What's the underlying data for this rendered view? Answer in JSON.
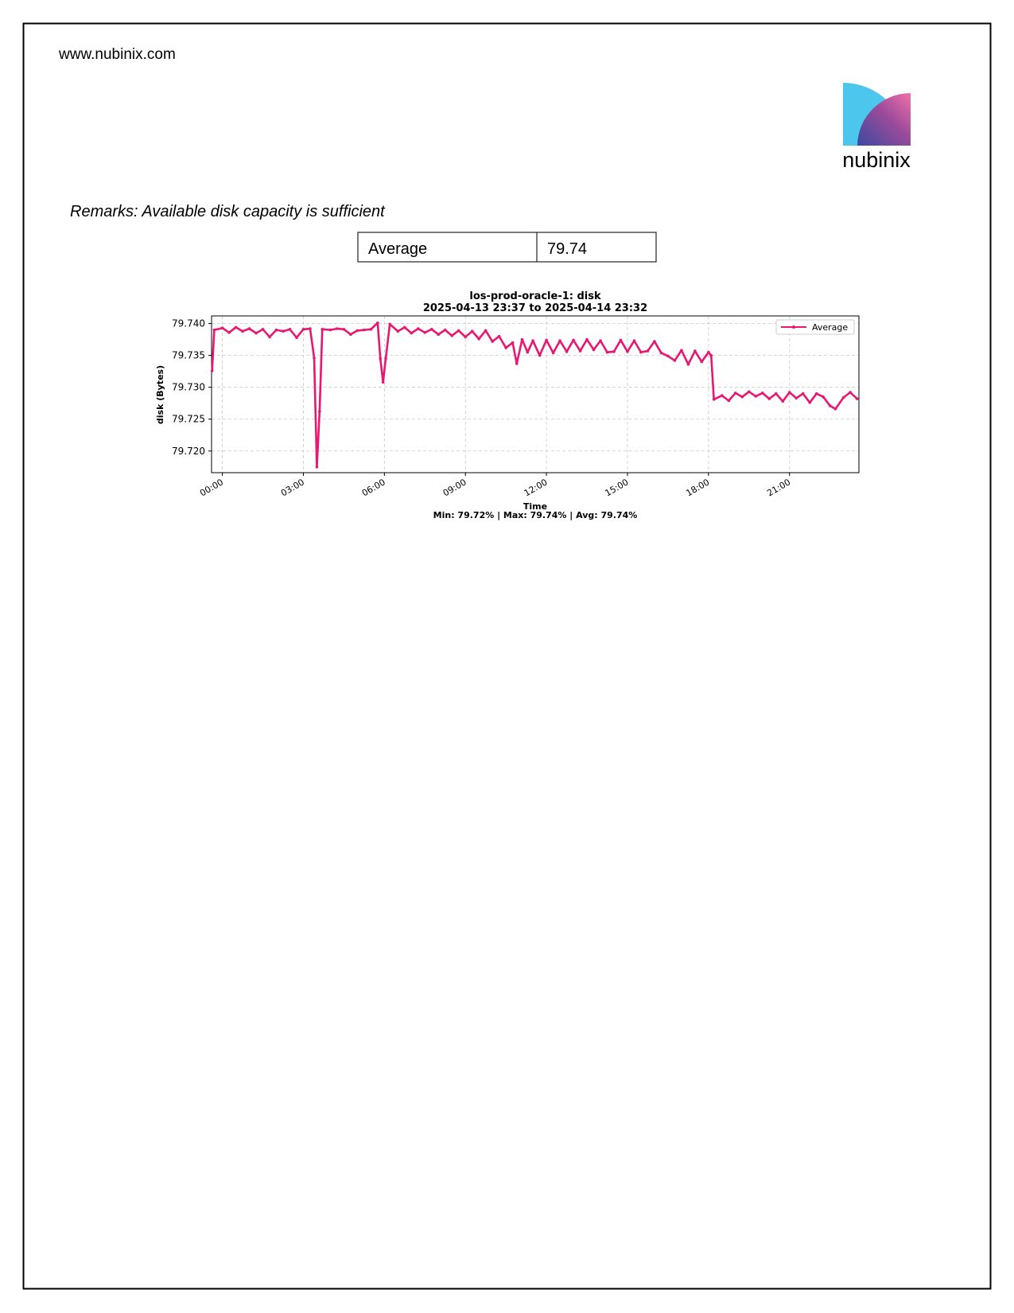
{
  "header": {
    "url": "www.nubinix.com",
    "logo_text": "nubinix"
  },
  "remarks": "Remarks: Available disk capacity is sufficient",
  "table": {
    "rows": [
      [
        "Average",
        "79.74"
      ]
    ]
  },
  "chart_data": {
    "type": "line",
    "title": "los-prod-oracle-1: disk",
    "subtitle": "2025-04-13 23:37 to 2025-04-14 23:32",
    "xlabel": "Time",
    "ylabel": "disk (Bytes)",
    "footer": "Min: 79.72% | Max: 79.74% | Avg: 79.74%",
    "legend": "upper right",
    "grid": true,
    "xlim": [
      -0.4,
      23.57
    ],
    "ylim": [
      79.7166,
      79.7412
    ],
    "xticks": [
      {
        "value": 0,
        "label": "00:00"
      },
      {
        "value": 3,
        "label": "03:00"
      },
      {
        "value": 6,
        "label": "06:00"
      },
      {
        "value": 9,
        "label": "09:00"
      },
      {
        "value": 12,
        "label": "12:00"
      },
      {
        "value": 15,
        "label": "15:00"
      },
      {
        "value": 18,
        "label": "18:00"
      },
      {
        "value": 21,
        "label": "21:00"
      }
    ],
    "yticks": [
      {
        "value": 79.72,
        "label": "79.720"
      },
      {
        "value": 79.725,
        "label": "79.725"
      },
      {
        "value": 79.73,
        "label": "79.730"
      },
      {
        "value": 79.735,
        "label": "79.735"
      },
      {
        "value": 79.74,
        "label": "79.740"
      }
    ],
    "x": [
      -0.38,
      -0.3,
      0,
      0.25,
      0.5,
      0.75,
      1,
      1.25,
      1.5,
      1.75,
      2,
      2.25,
      2.5,
      2.75,
      3,
      3.25,
      3.4,
      3.5,
      3.6,
      3.7,
      4,
      4.25,
      4.5,
      4.75,
      5,
      5.25,
      5.5,
      5.75,
      5.85,
      5.95,
      6.05,
      6.2,
      6.5,
      6.75,
      7,
      7.25,
      7.5,
      7.75,
      8,
      8.25,
      8.5,
      8.75,
      9,
      9.25,
      9.5,
      9.75,
      10,
      10.25,
      10.5,
      10.75,
      10.9,
      11.1,
      11.3,
      11.5,
      11.75,
      12,
      12.25,
      12.5,
      12.75,
      13,
      13.25,
      13.5,
      13.75,
      14,
      14.25,
      14.5,
      14.75,
      15,
      15.25,
      15.5,
      15.75,
      16,
      16.25,
      16.5,
      16.75,
      17,
      17.25,
      17.5,
      17.75,
      18,
      18.1,
      18.2,
      18.5,
      18.75,
      19,
      19.25,
      19.5,
      19.75,
      20,
      20.25,
      20.5,
      20.75,
      21,
      21.25,
      21.5,
      21.75,
      22,
      22.25,
      22.5,
      22.7,
      23,
      23.25,
      23.5
    ],
    "series": [
      {
        "name": "Average",
        "color": "#e8176f",
        "values": [
          79.7326,
          79.739,
          79.7393,
          79.7386,
          79.7394,
          79.7388,
          79.7392,
          79.7385,
          79.7391,
          79.7379,
          79.739,
          79.7388,
          79.7391,
          79.7378,
          79.7391,
          79.7392,
          79.7346,
          79.7175,
          79.7262,
          79.7391,
          79.739,
          79.7392,
          79.7391,
          79.7383,
          79.7389,
          79.739,
          79.7391,
          79.7401,
          79.7345,
          79.7308,
          79.7345,
          79.7399,
          79.7388,
          79.7394,
          79.7385,
          79.7392,
          79.7386,
          79.7391,
          79.7383,
          79.739,
          79.7381,
          79.7389,
          79.7379,
          79.7388,
          79.7376,
          79.7389,
          79.7372,
          79.738,
          79.7362,
          79.737,
          79.7337,
          79.7375,
          79.7355,
          79.7373,
          79.735,
          79.7374,
          79.7354,
          79.7373,
          79.7356,
          79.7374,
          79.7357,
          79.7375,
          79.7359,
          79.7373,
          79.7355,
          79.7356,
          79.7374,
          79.7356,
          79.7373,
          79.7355,
          79.7357,
          79.7372,
          79.7354,
          79.7349,
          79.7342,
          79.7358,
          79.7336,
          79.7357,
          79.734,
          79.7355,
          79.735,
          79.7281,
          79.7287,
          79.7279,
          79.7291,
          79.7285,
          79.7293,
          79.7286,
          79.7291,
          79.7282,
          79.729,
          79.7278,
          79.7292,
          79.7283,
          79.729,
          79.7276,
          79.729,
          79.7285,
          79.7271,
          79.7266,
          79.7284,
          79.7292,
          79.7282
        ]
      }
    ]
  }
}
